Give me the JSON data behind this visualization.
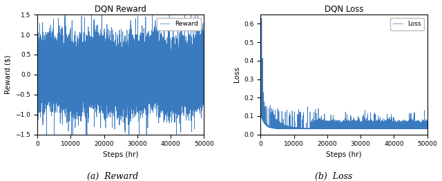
{
  "title_reward": "DQN Reward",
  "title_loss": "DQN Loss",
  "xlabel": "Steps (hr)",
  "ylabel_reward": "Reward ($)",
  "ylabel_loss": "Loss",
  "legend_reward": "Reward",
  "legend_loss": "Loss",
  "caption_reward": "(a)  Reward",
  "caption_loss": "(b)  Loss",
  "n_steps": 50000,
  "reward_ylim": [
    -1.5,
    1.5
  ],
  "loss_ylim": [
    0.0,
    0.65
  ],
  "line_color": "#3a7abf",
  "line_width": 0.5,
  "reward_yticks": [
    -1.5,
    -1.0,
    -0.5,
    0.0,
    0.5,
    1.0,
    1.5
  ],
  "loss_yticks": [
    0.0,
    0.1,
    0.2,
    0.3,
    0.4,
    0.5,
    0.6
  ],
  "reward_xticks": [
    0,
    10000,
    20000,
    30000,
    40000,
    50000
  ],
  "loss_xticks": [
    0,
    10000,
    20000,
    30000,
    40000,
    50000
  ],
  "reward_xtick_labels": [
    "0",
    "10000",
    "20000",
    "30000",
    "40000",
    "50000"
  ],
  "loss_xtick_labels": [
    "0",
    "10000",
    "20000",
    "30000",
    "40000",
    "50000"
  ],
  "seed": 123
}
